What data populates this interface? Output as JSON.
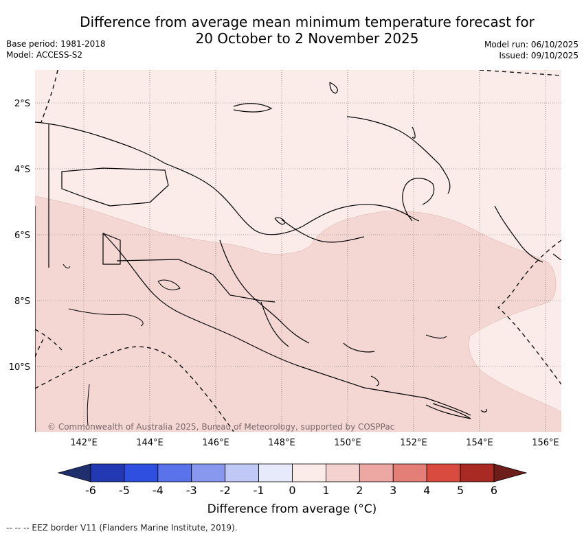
{
  "title_line1": "Difference from average mean minimum temperature forecast for",
  "title_line2": "20 October to 2 November 2025",
  "base_period": "Base period: 1981-2018",
  "model": "Model: ACCESS-S2",
  "model_run": "Model run: 06/10/2025",
  "issued": "Issued: 09/10/2025",
  "copyright": "© Commonwealth of Australia 2025, Bureau of Meteorology, supported by COSPPac",
  "lat_labels": [
    "2°S",
    "4°S",
    "6°S",
    "8°S",
    "10°S"
  ],
  "lon_labels": [
    "142°E",
    "144°E",
    "146°E",
    "148°E",
    "150°E",
    "152°E",
    "154°E",
    "156°E"
  ],
  "colorbar": {
    "ticks": [
      "-6",
      "-5",
      "-4",
      "-3",
      "-2",
      "-1",
      "0",
      "1",
      "2",
      "3",
      "4",
      "5",
      "6"
    ],
    "title": "Difference from average (°C)",
    "colors": [
      "#1f2f6e",
      "#2339b3",
      "#2e4fe0",
      "#5b73ea",
      "#8898ef",
      "#c0c8f6",
      "#e6eafb",
      "#fbebe9",
      "#f4d2cf",
      "#eea8a3",
      "#e47f78",
      "#d94b3e",
      "#a82a22",
      "#6e1e1a"
    ]
  },
  "legend_note": "-- -- -- EEZ border V11 (Flanders Marine Institute, 2019).",
  "colors": {
    "light": "#fbebe9",
    "medium": "#f4d6d3"
  }
}
